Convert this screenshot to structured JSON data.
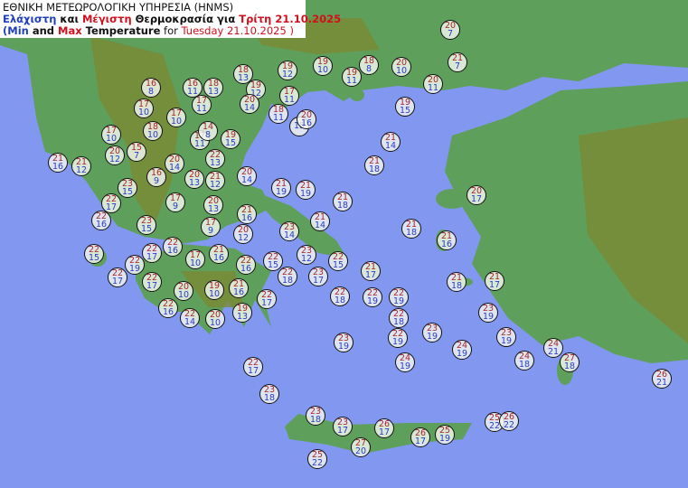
{
  "header": {
    "line1": "ΕΘΝΙΚΗ ΜΕΤΕΩΡΟΛΟΓΙΚΗ ΥΠΗΡΕΣΙΑ (HNMS)",
    "line2": [
      {
        "text": "Ελάχιστη",
        "color": "blue"
      },
      {
        "text": " και ",
        "color": "black"
      },
      {
        "text": "Μέγιστη",
        "color": "red"
      },
      {
        "text": " Θερμοκρασία για ",
        "color": "black"
      },
      {
        "text": "Τρίτη 21.10.2025",
        "color": "red"
      }
    ],
    "line3": [
      {
        "text": "(",
        "color": "blue"
      },
      {
        "text": "Min",
        "color": "blue"
      },
      {
        "text": " and ",
        "color": "black"
      },
      {
        "text": "Max",
        "color": "red"
      },
      {
        "text": " Temperature",
        "color": "black"
      },
      {
        "text": " for ",
        "color": "black",
        "weight": "normal"
      },
      {
        "text": "Tuesday 21.10.2025 )",
        "color": "red",
        "weight": "normal"
      }
    ]
  },
  "colors": {
    "sea": "#8297ef",
    "land": "#5f9f5c",
    "mountain": "#7a8a34",
    "max_text": "#a8262a",
    "min_text": "#2a3bc8"
  },
  "stations": [
    {
      "max": "20",
      "min": "7"
    },
    {
      "max": "21",
      "min": "7"
    },
    {
      "max": "20",
      "min": "11"
    },
    {
      "max": "20",
      "min": "10"
    },
    {
      "max": "18",
      "min": "8"
    },
    {
      "max": "19",
      "min": "11"
    },
    {
      "max": "19",
      "min": "10"
    },
    {
      "max": "19",
      "min": "12"
    },
    {
      "max": "18",
      "min": "13"
    },
    {
      "max": "19",
      "min": "12"
    },
    {
      "max": "20",
      "min": "14"
    },
    {
      "max": "17",
      "min": "11"
    },
    {
      "max": "18",
      "min": "11"
    },
    {
      "max": "",
      "min": "15"
    },
    {
      "max": "20",
      "min": "16"
    },
    {
      "max": "19",
      "min": "15"
    },
    {
      "max": "21",
      "min": "14"
    },
    {
      "max": "21",
      "min": "18"
    },
    {
      "max": "16",
      "min": "8"
    },
    {
      "max": "16",
      "min": "11"
    },
    {
      "max": "18",
      "min": "13"
    },
    {
      "max": "17",
      "min": "10"
    },
    {
      "max": "17",
      "min": "10"
    },
    {
      "max": "17",
      "min": "11"
    },
    {
      "max": "17",
      "min": "11"
    },
    {
      "max": "14",
      "min": "8"
    },
    {
      "max": "19",
      "min": "15"
    },
    {
      "max": "17",
      "min": "10"
    },
    {
      "max": "18",
      "min": "10"
    },
    {
      "max": "20",
      "min": "12"
    },
    {
      "max": "15",
      "min": "7"
    },
    {
      "max": "21",
      "min": "16"
    },
    {
      "max": "21",
      "min": "12"
    },
    {
      "max": "20",
      "min": "14"
    },
    {
      "max": "22",
      "min": "13"
    },
    {
      "max": "20",
      "min": "14"
    },
    {
      "max": "16",
      "min": "9"
    },
    {
      "max": "20",
      "min": "13"
    },
    {
      "max": "21",
      "min": "12"
    },
    {
      "max": "23",
      "min": "15"
    },
    {
      "max": "22",
      "min": "17"
    },
    {
      "max": "17",
      "min": "9"
    },
    {
      "max": "20",
      "min": "13"
    },
    {
      "max": "22",
      "min": "16"
    },
    {
      "max": "23",
      "min": "15"
    },
    {
      "max": "17",
      "min": "9"
    },
    {
      "max": "21",
      "min": "16"
    },
    {
      "max": "20",
      "min": "12"
    },
    {
      "max": "21",
      "min": "19"
    },
    {
      "max": "21",
      "min": "19"
    },
    {
      "max": "21",
      "min": "18"
    },
    {
      "max": "21",
      "min": "14"
    },
    {
      "max": "23",
      "min": "14"
    },
    {
      "max": "22",
      "min": "15"
    },
    {
      "max": "22",
      "min": "16"
    },
    {
      "max": "22",
      "min": "17"
    },
    {
      "max": "17",
      "min": "10"
    },
    {
      "max": "21",
      "min": "16"
    },
    {
      "max": "22",
      "min": "19"
    },
    {
      "max": "22",
      "min": "17"
    },
    {
      "max": "22",
      "min": "17"
    },
    {
      "max": "22",
      "min": "16"
    },
    {
      "max": "22",
      "min": "15"
    },
    {
      "max": "22",
      "min": "18"
    },
    {
      "max": "23",
      "min": "12"
    },
    {
      "max": "23",
      "min": "17"
    },
    {
      "max": "22",
      "min": "15"
    },
    {
      "max": "21",
      "min": "17"
    },
    {
      "max": "22",
      "min": "18"
    },
    {
      "max": "22",
      "min": "19"
    },
    {
      "max": "22",
      "min": "19"
    },
    {
      "max": "22",
      "min": "18"
    },
    {
      "max": "22",
      "min": "19"
    },
    {
      "max": "23",
      "min": "19"
    },
    {
      "max": "23",
      "min": "19"
    },
    {
      "max": "24",
      "min": "19"
    },
    {
      "max": "24",
      "min": "19"
    },
    {
      "max": "21",
      "min": "18"
    },
    {
      "max": "21",
      "min": "16"
    },
    {
      "max": "20",
      "min": "17"
    },
    {
      "max": "21",
      "min": "18"
    },
    {
      "max": "21",
      "min": "17"
    },
    {
      "max": "23",
      "min": "19"
    },
    {
      "max": "23",
      "min": "19"
    },
    {
      "max": "24",
      "min": "18"
    },
    {
      "max": "24",
      "min": "21"
    },
    {
      "max": "27",
      "min": "18"
    },
    {
      "max": "26",
      "min": "21"
    },
    {
      "max": "20",
      "min": "10"
    },
    {
      "max": "19",
      "min": "10"
    },
    {
      "max": "21",
      "min": "16"
    },
    {
      "max": "22",
      "min": "16"
    },
    {
      "max": "22",
      "min": "17"
    },
    {
      "max": "22",
      "min": "14"
    },
    {
      "max": "20",
      "min": "10"
    },
    {
      "max": "19",
      "min": "13"
    },
    {
      "max": "22",
      "min": "17"
    },
    {
      "max": "23",
      "min": "18"
    },
    {
      "max": "23",
      "min": "18"
    },
    {
      "max": "23",
      "min": "17"
    },
    {
      "max": "26",
      "min": "17"
    },
    {
      "max": "27",
      "min": "20"
    },
    {
      "max": "26",
      "min": "17"
    },
    {
      "max": "25",
      "min": "19"
    },
    {
      "max": "25",
      "min": "22"
    },
    {
      "max": "25",
      "min": "22"
    },
    {
      "max": "26",
      "min": "22"
    }
  ]
}
